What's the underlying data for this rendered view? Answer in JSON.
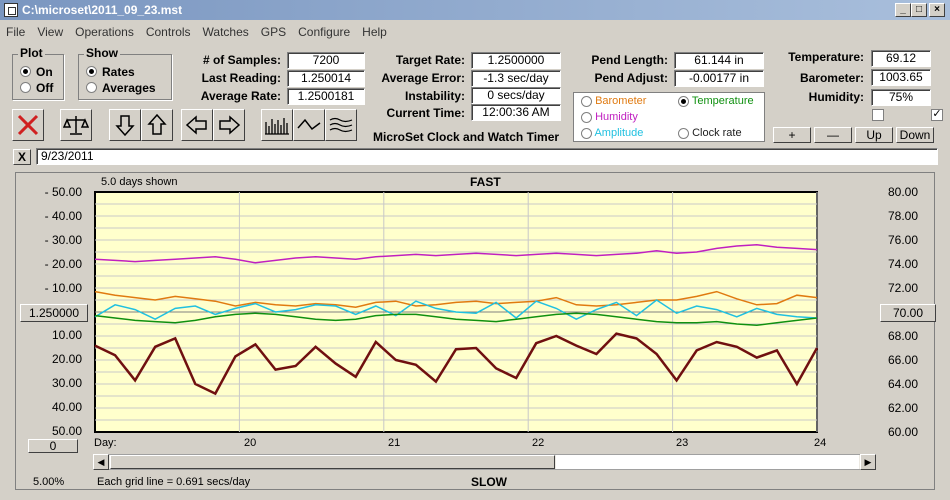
{
  "window": {
    "title": "C:\\microset\\2011_09_23.mst"
  },
  "menu": [
    "File",
    "View",
    "Operations",
    "Controls",
    "Watches",
    "GPS",
    "Configure",
    "Help"
  ],
  "plot_group": {
    "label": "Plot",
    "on": "On",
    "off": "Off"
  },
  "show_group": {
    "label": "Show",
    "rates": "Rates",
    "averages": "Averages"
  },
  "stats": {
    "samples_label": "# of Samples:",
    "samples": "7200",
    "last_label": "Last Reading:",
    "last": "1.250014",
    "avg_label": "Average Rate:",
    "avg": "1.2500181",
    "target_label": "Target Rate:",
    "target": "1.2500000",
    "avg_err_label": "Average Error:",
    "avg_err": "-1.3 sec/day",
    "instab_label": "Instability:",
    "instab": "0 secs/day",
    "time_label": "Current Time:",
    "time": "12:00:36 AM",
    "app_name": "MicroSet Clock and Watch Timer",
    "pend_len_label": "Pend Length:",
    "pend_len": "61.144 in",
    "pend_adj_label": "Pend Adjust:",
    "pend_adj": "-0.00177 in",
    "temp_label": "Temperature:",
    "temp": "69.12",
    "baro_label": "Barometer:",
    "baro": "1003.65",
    "hum_label": "Humidity:",
    "hum": "75%"
  },
  "aux_options": [
    {
      "label": "Barometer",
      "color": "#e07a10"
    },
    {
      "label": "Temperature",
      "color": "#109010"
    },
    {
      "label": "Humidity",
      "color": "#c020c0"
    },
    {
      "label": "Amplitude",
      "color": "#20c0e0"
    },
    {
      "label": "Clock rate",
      "color": "#202020"
    }
  ],
  "aux_buttons": {
    "plus": "+",
    "minus": "—",
    "up": "Up",
    "down": "Down"
  },
  "note": {
    "close": "X",
    "text": "9/23/2011"
  },
  "chart_labels": {
    "days_shown": "5.0 days shown",
    "fast": "FAST",
    "slow": "SLOW",
    "day_label": "Day:",
    "grid_note": "Each grid line = 0.691 secs/day",
    "pct": "5.00%",
    "center_left": "1.250000",
    "center_right": "70.00",
    "zero_btn": "0"
  },
  "chart_data": {
    "type": "line",
    "x_ticks": [
      "20",
      "21",
      "22",
      "23",
      "24"
    ],
    "left_ticks": [
      "- 50.00",
      "- 40.00",
      "- 30.00",
      "- 20.00",
      "- 10.00",
      "10.00",
      "20.00",
      "30.00",
      "40.00",
      "50.00"
    ],
    "right_ticks": [
      "80.00",
      "78.00",
      "76.00",
      "74.00",
      "72.00",
      "70.00",
      "68.00",
      "66.00",
      "64.00",
      "62.00",
      "60.00"
    ],
    "right_ylim": [
      60,
      80
    ],
    "xlim": [
      19,
      24
    ],
    "series": [
      {
        "color": "#c020c0",
        "values": [
          74.4,
          74.3,
          74.2,
          74.3,
          74.4,
          74.5,
          74.6,
          74.4,
          74.1,
          74.3,
          74.5,
          74.6,
          74.5,
          74.4,
          74.6,
          74.7,
          74.8,
          74.7,
          74.8,
          74.9,
          74.8,
          74.7,
          74.8,
          74.9,
          74.8,
          74.7,
          74.8,
          74.9,
          75.1,
          74.9,
          75.0,
          75.3,
          75.5,
          75.6,
          75.4,
          75.3,
          75.2
        ]
      },
      {
        "color": "#e07a10",
        "values": [
          71.7,
          71.4,
          71.2,
          71.0,
          71.3,
          71.1,
          70.9,
          70.5,
          70.8,
          70.6,
          70.5,
          70.7,
          70.6,
          70.4,
          70.8,
          70.9,
          70.5,
          70.6,
          70.8,
          70.9,
          70.7,
          70.8,
          70.9,
          71.2,
          70.6,
          70.5,
          70.6,
          70.8,
          71.0,
          71.0,
          71.3,
          71.7,
          71.1,
          70.6,
          70.7,
          71.4,
          71.2
        ]
      },
      {
        "color": "#20c0e0",
        "values": [
          69.6,
          70.6,
          70.2,
          69.4,
          70.3,
          70.5,
          69.8,
          70.3,
          70.7,
          70.0,
          70.2,
          70.6,
          70.5,
          69.8,
          70.5,
          69.7,
          70.9,
          70.3,
          70.0,
          69.9,
          70.8,
          69.5,
          70.9,
          70.3,
          69.4,
          70.2,
          70.8,
          69.7,
          71.0,
          69.9,
          70.5,
          70.2,
          69.6,
          70.3,
          69.8,
          69.6,
          69.5
        ]
      },
      {
        "color": "#109010",
        "values": [
          69.7,
          69.5,
          69.3,
          69.2,
          69.1,
          69.3,
          69.6,
          69.8,
          69.9,
          69.8,
          69.6,
          69.4,
          69.3,
          69.4,
          69.7,
          69.8,
          69.8,
          69.6,
          69.4,
          69.3,
          69.2,
          69.4,
          69.6,
          69.8,
          69.9,
          69.8,
          69.6,
          69.4,
          69.2,
          69.1,
          69.1,
          69.2,
          69.0,
          68.9,
          69.1,
          69.3,
          69.5
        ]
      },
      {
        "color": "#701010",
        "values": [
          67.2,
          66.4,
          64.3,
          67.1,
          67.8,
          64.0,
          63.2,
          66.3,
          67.3,
          65.2,
          65.5,
          67.1,
          65.7,
          64.6,
          67.5,
          66.0,
          65.6,
          64.2,
          66.9,
          67.0,
          65.3,
          64.5,
          67.4,
          68.0,
          67.2,
          66.5,
          68.2,
          67.8,
          66.5,
          64.3,
          66.8,
          67.5,
          67.1,
          66.2,
          66.8,
          64.0,
          67.0
        ]
      }
    ]
  }
}
